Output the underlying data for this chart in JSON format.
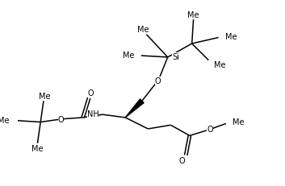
{
  "bg_color": "#ffffff",
  "line_color": "#000000",
  "lw": 1.1,
  "fs": 7.0,
  "figsize": [
    3.53,
    2.32
  ],
  "dpi": 100,
  "xlim": [
    0,
    353
  ],
  "ylim": [
    0,
    232
  ]
}
